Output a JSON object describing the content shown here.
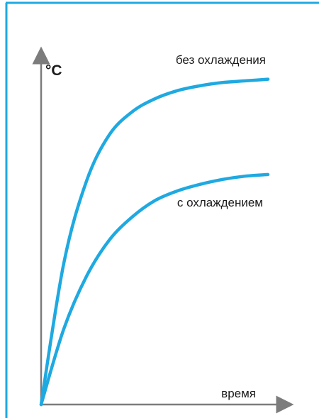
{
  "colors": {
    "frame": "#1fa9e1",
    "axis": "#7c7c7c",
    "curve": "#1fa9e1",
    "text": "#1a1a1a"
  },
  "chart_data": {
    "type": "line",
    "title": "",
    "xlabel": "время",
    "ylabel": "°C",
    "xlim": [
      0,
      100
    ],
    "ylim": [
      0,
      100
    ],
    "grid": false,
    "legend": "none",
    "series": [
      {
        "name": "без охлаждения",
        "x": [
          0,
          10,
          20,
          30,
          40,
          50,
          60,
          70,
          80,
          90,
          100
        ],
        "values": [
          0,
          43,
          68,
          82,
          89,
          93,
          95.5,
          97,
          98,
          98.5,
          99
        ]
      },
      {
        "name": "с охлаждением",
        "x": [
          0,
          10,
          20,
          30,
          40,
          50,
          60,
          70,
          80,
          90,
          100
        ],
        "values": [
          0,
          23,
          39,
          50,
          57,
          62,
          65,
          67,
          68.5,
          69.5,
          70
        ]
      }
    ]
  }
}
